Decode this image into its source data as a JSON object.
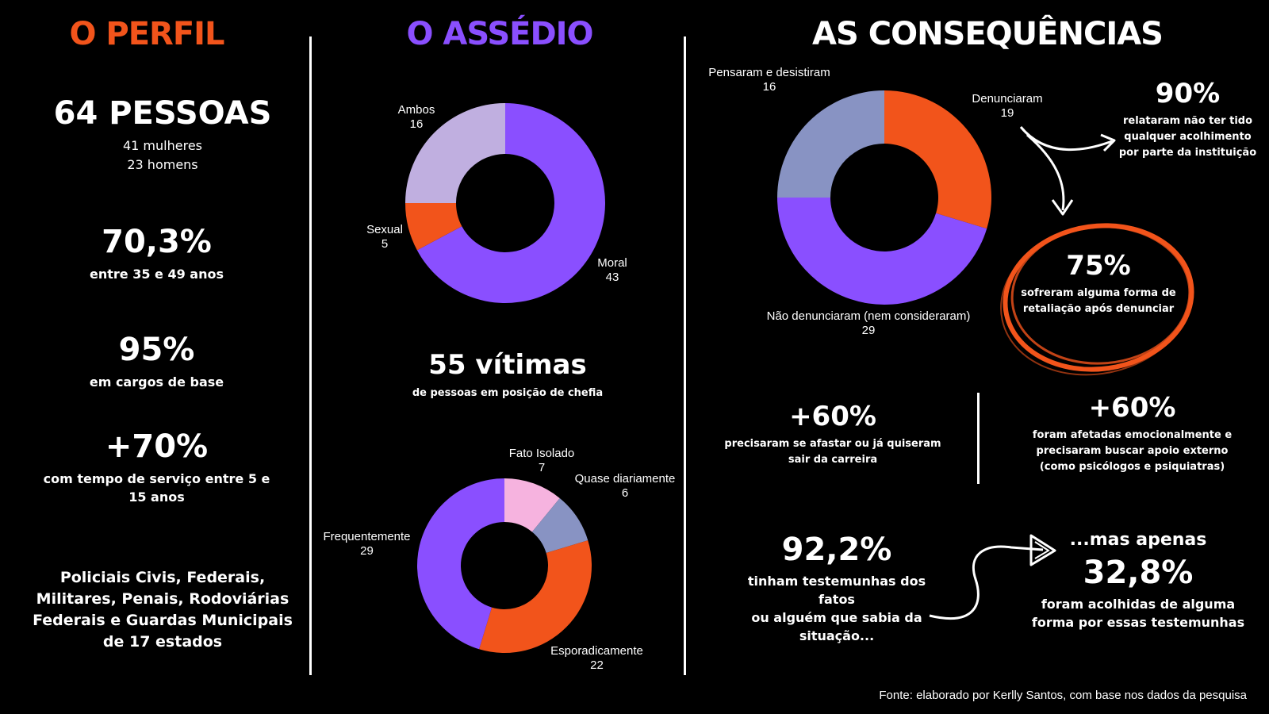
{
  "colors": {
    "orange": "#f2541b",
    "purple": "#8a4fff",
    "lavender": "#c0afe0",
    "grayblue": "#8893c3",
    "pink": "#f6b3df"
  },
  "perfil": {
    "heading": "O PERFIL",
    "stat1": "64 PESSOAS",
    "stat1_line1": "41 mulheres",
    "stat1_line2": "23 homens",
    "stat2": "70,3%",
    "stat2_desc": "entre 35 e 49 anos",
    "stat3": "95%",
    "stat3_desc": "em cargos de base",
    "stat4": "+70%",
    "stat4_desc": "com tempo de serviço entre 5 e 15 anos",
    "footer_line1": "Policiais Civis, Federais,",
    "footer_line2": "Militares, Penais, Rodoviárias",
    "footer_line3": "Federais e Guardas Municipais",
    "footer_line4": "de 17 estados"
  },
  "assedio": {
    "heading": "O ASSÉDIO",
    "victims": "55 vítimas",
    "victims_desc": "de pessoas em posição de chefia"
  },
  "consequencias": {
    "heading": "AS CONSEQUÊNCIAS",
    "c90": "90%",
    "c90_desc_line1": "relataram não ter tido",
    "c90_desc_line2": "qualquer acolhimento",
    "c90_desc_line3": "por parte da instituição",
    "c75": "75%",
    "c75_desc_line1": "sofreram alguma forma de",
    "c75_desc_line2": "retaliação após denunciar",
    "c60a": "+60%",
    "c60a_desc_line1": "precisaram se afastar ou já quiseram",
    "c60a_desc_line2": "sair da carreira",
    "c60b": "+60%",
    "c60b_desc_line1": "foram afetadas emocionalmente e",
    "c60b_desc_line2": "precisaram buscar apoio externo",
    "c60b_desc_line3": "(como psicólogos e psiquiatras)",
    "c92": "92,2%",
    "c92_desc_line1": "tinham testemunhas dos fatos",
    "c92_desc_line2": "ou alguém que sabia da",
    "c92_desc_line3": "situação...",
    "mas": "...mas apenas",
    "c32": "32,8%",
    "c32_desc_line1": "foram acolhidas de alguma",
    "c32_desc_line2": "forma por essas testemunhas"
  },
  "fonte": "Fonte: elaborado por Kerlly Santos, com base nos dados da pesquisa",
  "chart_data": [
    {
      "type": "pie",
      "donut": true,
      "categories": [
        "Moral",
        "Sexual",
        "Ambos"
      ],
      "values": [
        43,
        5,
        16
      ],
      "colors": [
        "#8a4fff",
        "#f2541b",
        "#c0afe0"
      ]
    },
    {
      "type": "pie",
      "donut": true,
      "categories": [
        "Fato Isolado",
        "Quase diariamente",
        "Esporadicamente",
        "Frequentemente"
      ],
      "values": [
        7,
        6,
        22,
        29
      ],
      "colors": [
        "#f6b3df",
        "#8893c3",
        "#f2541b",
        "#8a4fff"
      ]
    },
    {
      "type": "pie",
      "donut": true,
      "categories": [
        "Denunciaram",
        "Não denunciaram (nem consideraram)",
        "Pensaram e desistiram"
      ],
      "values": [
        19,
        29,
        16
      ],
      "colors": [
        "#f2541b",
        "#8a4fff",
        "#8893c3"
      ]
    }
  ]
}
